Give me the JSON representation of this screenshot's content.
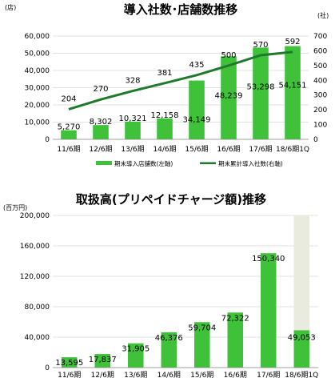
{
  "chart_data": [
    {
      "type": "bar",
      "title": "導入社数･店舗数推移",
      "left_unit": "(店)",
      "right_unit": "(社)",
      "categories": [
        "11/6期",
        "12/6期",
        "13/6期",
        "14/6期",
        "15/6期",
        "16/6期",
        "17/6期",
        "18/6期1Q"
      ],
      "series": [
        {
          "name": "期末導入店舗数(左軸)",
          "type": "bar",
          "axis": "left",
          "color": "#3fc13a",
          "values": [
            5270,
            8302,
            10321,
            12158,
            34149,
            48239,
            53298,
            54151
          ],
          "labels": [
            "5,270",
            "8,302",
            "10,321",
            "12,158",
            "34,149",
            "48,239",
            "53,298",
            "54,151"
          ]
        },
        {
          "name": "期末累計導入社数(右軸)",
          "type": "line",
          "axis": "right",
          "color": "#1f7a2c",
          "values": [
            204,
            270,
            328,
            381,
            435,
            500,
            570,
            592
          ],
          "labels": [
            "204",
            "270",
            "328",
            "381",
            "435",
            "500",
            "570",
            "592"
          ]
        }
      ],
      "left_axis": {
        "ylim": [
          0,
          60000
        ],
        "ticks": [
          "0",
          "10,000",
          "20,000",
          "30,000",
          "40,000",
          "50,000",
          "60,000"
        ]
      },
      "right_axis": {
        "ylim": [
          0,
          700
        ],
        "ticks": [
          "0",
          "100",
          "200",
          "300",
          "400",
          "500",
          "600",
          "700"
        ]
      },
      "grid": true,
      "legend_position": "bottom"
    },
    {
      "type": "bar",
      "title": "取扱高(プリペイドチャージ額)推移",
      "unit": "(百万円)",
      "categories": [
        "11/6期",
        "12/6期",
        "13/6期",
        "14/6期",
        "15/6期",
        "16/6期",
        "17/6期",
        "18/6期1Q"
      ],
      "series": [
        {
          "type": "bar",
          "color": "#3fc13a",
          "values": [
            13595,
            17837,
            31905,
            46376,
            59704,
            72322,
            150340,
            49053
          ],
          "labels": [
            "13,595",
            "17,837",
            "31,905",
            "46,376",
            "59,704",
            "72,322",
            "150,340",
            "49,053"
          ]
        }
      ],
      "background_bar": {
        "category": "18/6期1Q",
        "value": 200000,
        "color": "#eaebdf"
      },
      "axis": {
        "ylim": [
          0,
          200000
        ],
        "ticks": [
          "0",
          "40,000",
          "80,000",
          "120,000",
          "160,000",
          "200,000"
        ]
      },
      "grid": true
    }
  ]
}
